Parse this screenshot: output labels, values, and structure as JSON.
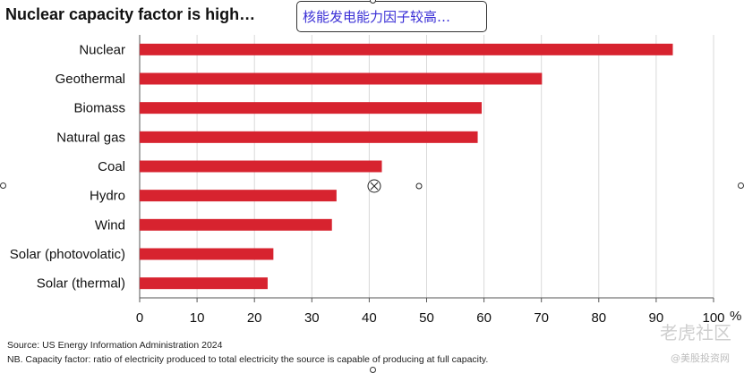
{
  "header": {
    "title": "Nuclear capacity factor is high…",
    "callout": "核能发电能力因子较高…"
  },
  "chart_data": {
    "type": "bar",
    "orientation": "horizontal",
    "categories": [
      "Nuclear",
      "Geothermal",
      "Biomass",
      "Natural gas",
      "Coal",
      "Hydro",
      "Wind",
      "Solar (photovolatic)",
      "Solar (thermal)"
    ],
    "values": [
      92.9,
      70.1,
      59.6,
      58.9,
      42.2,
      34.3,
      33.5,
      23.3,
      22.3
    ],
    "xlim": [
      0,
      100
    ],
    "xticks": [
      "0",
      "10",
      "20",
      "30",
      "40",
      "50",
      "60",
      "70",
      "80",
      "90",
      "100"
    ],
    "xunit": "%",
    "grid": true,
    "bar_color": "#d7232f"
  },
  "notes": {
    "source": "Source: US Energy Information Administration 2024",
    "nb": "NB. Capacity factor: ratio of electricity produced to total electricity the source is capable of producing at full capacity."
  },
  "watermark": {
    "main": "老虎社区",
    "sub": "@美股投资网"
  },
  "icons": {
    "cursor": "circle-x-cursor-icon"
  }
}
